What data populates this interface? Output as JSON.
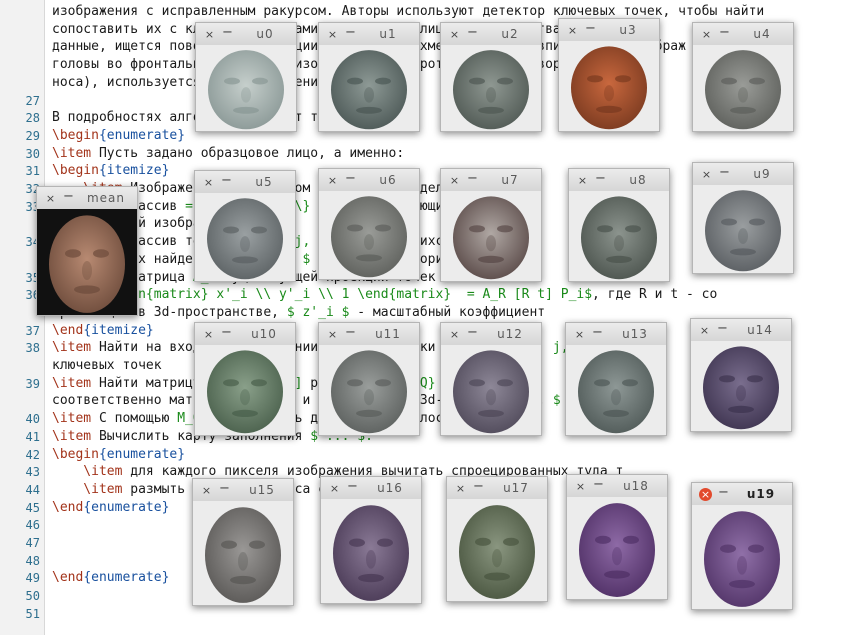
{
  "colors": {
    "command": "#a2331a",
    "brace": "#18509e",
    "math": "#1a8a1a",
    "line_number": "#2e6f8e",
    "close_active": "#e24a2d"
  },
  "editor": {
    "lines": [
      {
        "n": "",
        "parts": [
          {
            "t": "изображения с исправленным ракурсом. Авторы используют детектор ключевых точек, чтобы найти",
            "c": "txt"
          }
        ]
      },
      {
        "n": "",
        "parts": [
          {
            "t": "сопоставить их с ключевыми точками образцового лица, для качества е",
            "c": "txt"
          }
        ]
      },
      {
        "n": "",
        "parts": [
          {
            "t": "данные, ищется поворот 3d-проекции, поворот трёхмерной модели вписывается изображ",
            "c": "txt"
          }
        ]
      },
      {
        "n": "",
        "parts": [
          {
            "t": "головы во фронтальной. Для ... изображения повороты носа... поворо",
            "c": "txt"
          }
        ]
      },
      {
        "n": "",
        "parts": [
          {
            "t": "носа), используется ... изображение",
            "c": "txt"
          }
        ]
      },
      {
        "n": "27",
        "parts": []
      },
      {
        "n": "28",
        "parts": [
          {
            "t": "В подробностях алгоритм выглядит так",
            "c": "txt"
          }
        ]
      },
      {
        "n": "29",
        "parts": [
          {
            "t": "\\begin",
            "c": "kw"
          },
          {
            "t": "{enumerate}",
            "c": "br"
          }
        ]
      },
      {
        "n": "30",
        "parts": [
          {
            "t": "\\item",
            "c": "kw"
          },
          {
            "t": " Пусть задано образцовое лицо, а именно:",
            "c": "txt"
          }
        ]
      },
      {
        "n": "31",
        "parts": [
          {
            "t": "\\begin",
            "c": "kw"
          },
          {
            "t": "{itemize}",
            "c": "br"
          }
        ]
      },
      {
        "n": "32",
        "parts": [
          {
            "t": "    \\item",
            "c": "kw"
          },
          {
            "t": " Изображение ",
            "c": "txt"
          },
          {
            "t": "$,",
            "c": "gr"
          },
          {
            "t": " при этом трёхмерной моделей лица",
            "c": "txt"
          }
        ]
      },
      {
        "n": "33",
        "parts": [
          {
            "t": "    \\item",
            "c": "kw"
          },
          {
            "t": " Массив ",
            "c": "txt"
          },
          {
            "t": "= \\{(x_i, y_i)\\}",
            "c": "gr"
          },
          {
            "t": " модели ... рующихся",
            "c": "txt"
          }
        ]
      },
      {
        "n": "",
        "parts": [
          {
            "t": "    пикселей изображения",
            "c": "txt"
          }
        ]
      },
      {
        "n": "34",
        "parts": [
          {
            "t": "    \\item",
            "c": "kw"
          },
          {
            "t": " Массив точек ",
            "c": "txt"
          },
          {
            "t": "K_j ... j, j=1",
            "c": "gr"
          },
          {
            "t": " ... дирущихся",
            "c": "txt"
          }
        ]
      },
      {
        "n": "",
        "parts": [
          {
            "t": "    ключевых найденных образцов ",
            "c": "txt"
          },
          {
            "t": "$",
            "c": "gr"
          },
          {
            "t": " с помощью алгоритма ключе",
            "c": "txt"
          }
        ]
      },
      {
        "n": "35",
        "parts": [
          {
            "t": "    \\item",
            "c": "kw"
          },
          {
            "t": " Матрица ",
            "c": "txt"
          },
          {
            "t": "A_R",
            "c": "gr"
          },
          {
            "t": " существующей проекции точек н",
            "c": "txt"
          }
        ]
      },
      {
        "n": "36",
        "parts": [
          {
            "t": "    ",
            "c": "txt"
          },
          {
            "t": "i \\begin{matrix} x'_i \\\\ y'_i \\\\ 1 \\end{matrix}  = A_R [R t] P_i$",
            "c": "gr"
          },
          {
            "t": ", где R и t - со",
            "c": "txt"
          }
        ]
      },
      {
        "n": "",
        "parts": [
          {
            "t": "трансляции в 3d-пространстве, ",
            "c": "txt"
          },
          {
            "t": "$ z'_i $",
            "c": "gr"
          },
          {
            "t": " - масштабный коэффициент",
            "c": "txt"
          }
        ]
      },
      {
        "n": "37",
        "parts": [
          {
            "t": "\\end",
            "c": "kw"
          },
          {
            "t": "{itemize}",
            "c": "br"
          }
        ]
      },
      {
        "n": "38",
        "parts": [
          {
            "t": "\\item",
            "c": "kw"
          },
          {
            "t": " Найти на входном изображении ключевые точки ",
            "c": "txt"
          },
          {
            "t": "$ ... j = ... j, 1)^T",
            "c": "gr"
          }
        ]
      },
      {
        "n": "",
        "parts": [
          {
            "t": "ключевых точек",
            "c": "txt"
          }
        ]
      },
      {
        "n": "39",
        "parts": [
          {
            "t": "\\item",
            "c": "kw"
          },
          {
            "t": " Найти матрицу ",
            "c": "txt"
          },
          {
            "t": "$ [R_Q ... ]",
            "c": "gr"
          },
          {
            "t": " ракурса ",
            "c": "txt"
          },
          {
            "t": "= ... Q} { M_Q",
            "c": "gr"
          }
        ]
      },
      {
        "n": "",
        "parts": [
          {
            "t": "соответственно матрица поворота и трансляции в 3d-пространстве, ",
            "c": "txt"
          },
          {
            "t": "$",
            "c": "gr"
          },
          {
            "t": " известный",
            "c": "txt"
          }
        ]
      },
      {
        "n": "40",
        "parts": [
          {
            "t": "\\item",
            "c": "kw"
          },
          {
            "t": " С помощью ",
            "c": "txt"
          },
          {
            "t": "M_Q $",
            "c": "gr"
          },
          {
            "t": " рассчитать для точек ... лос... ив набо",
            "c": "txt"
          }
        ]
      },
      {
        "n": "41",
        "parts": [
          {
            "t": "\\item",
            "c": "kw"
          },
          {
            "t": " Вычислить карту заполнения ",
            "c": "txt"
          },
          {
            "t": "$ ... $.",
            "c": "gr"
          }
        ]
      },
      {
        "n": "42",
        "parts": [
          {
            "t": "\\begin",
            "c": "kw"
          },
          {
            "t": "{enumerate}",
            "c": "br"
          }
        ]
      },
      {
        "n": "43",
        "parts": [
          {
            "t": "    \\item",
            "c": "kw"
          },
          {
            "t": " для каждого пикселя изображения вычитать спроецированных туда т",
            "c": "txt"
          }
        ]
      },
      {
        "n": "44",
        "parts": [
          {
            "t": "    \\item",
            "c": "kw"
          },
          {
            "t": " размыть фильтром Гаусса сглаживанием",
            "c": "txt"
          }
        ]
      },
      {
        "n": "45",
        "parts": [
          {
            "t": "\\end",
            "c": "kw"
          },
          {
            "t": "{enumerate}",
            "c": "br"
          }
        ]
      },
      {
        "n": "46",
        "parts": []
      },
      {
        "n": "47",
        "parts": []
      },
      {
        "n": "48",
        "parts": []
      },
      {
        "n": "49",
        "parts": [
          {
            "t": "\\end",
            "c": "kw"
          },
          {
            "t": "{enumerate}",
            "c": "br"
          }
        ]
      },
      {
        "n": "50",
        "parts": []
      },
      {
        "n": "51",
        "parts": []
      }
    ]
  },
  "windows": [
    {
      "id": "u0",
      "title": "u0",
      "face": "#c6cfcc",
      "shade": "#8a9896",
      "close_symbol": "×",
      "min_symbol": "−"
    },
    {
      "id": "u1",
      "title": "u1",
      "face": "#8e9a96",
      "shade": "#4c5856",
      "close_symbol": "×",
      "min_symbol": "−"
    },
    {
      "id": "u2",
      "title": "u2",
      "face": "#8f9892",
      "shade": "#505954",
      "close_symbol": "×",
      "min_symbol": "−"
    },
    {
      "id": "u3",
      "title": "u3",
      "face": "#c9683e",
      "shade": "#7a3a20",
      "close_symbol": "×",
      "min_symbol": "−"
    },
    {
      "id": "u4",
      "title": "u4",
      "face": "#9a9c98",
      "shade": "#5e605c",
      "close_symbol": "×",
      "min_symbol": "−"
    },
    {
      "id": "mean",
      "title": "mean",
      "face": "#b88a72",
      "shade": "#6e4c3c",
      "close_symbol": "×",
      "min_symbol": "−"
    },
    {
      "id": "u5",
      "title": "u5",
      "face": "#9aa0a2",
      "shade": "#5c6264",
      "close_symbol": "×",
      "min_symbol": "−"
    },
    {
      "id": "u6",
      "title": "u6",
      "face": "#9a9c98",
      "shade": "#5e605c",
      "close_symbol": "×",
      "min_symbol": "−"
    },
    {
      "id": "u7",
      "title": "u7",
      "face": "#b0a8a4",
      "shade": "#5a4a48",
      "close_symbol": "×",
      "min_symbol": "−"
    },
    {
      "id": "u8",
      "title": "u8",
      "face": "#8c948e",
      "shade": "#4c544e",
      "close_symbol": "×",
      "min_symbol": "−"
    },
    {
      "id": "u9",
      "title": "u9",
      "face": "#9a9ea0",
      "shade": "#5a5e62",
      "close_symbol": "×",
      "min_symbol": "−"
    },
    {
      "id": "u10",
      "title": "u10",
      "face": "#8aa08a",
      "shade": "#4a604c",
      "close_symbol": "×",
      "min_symbol": "−"
    },
    {
      "id": "u11",
      "title": "u11",
      "face": "#9a9e9c",
      "shade": "#5c605e",
      "close_symbol": "×",
      "min_symbol": "−"
    },
    {
      "id": "u12",
      "title": "u12",
      "face": "#8e8898",
      "shade": "#504a5a",
      "close_symbol": "×",
      "min_symbol": "−"
    },
    {
      "id": "u13",
      "title": "u13",
      "face": "#8e9896",
      "shade": "#505a58",
      "close_symbol": "×",
      "min_symbol": "−"
    },
    {
      "id": "u14",
      "title": "u14",
      "face": "#7a6e8e",
      "shade": "#3e3450",
      "close_symbol": "×",
      "min_symbol": "−"
    },
    {
      "id": "u15",
      "title": "u15",
      "face": "#9a9896",
      "shade": "#5a5856",
      "close_symbol": "×",
      "min_symbol": "−"
    },
    {
      "id": "u16",
      "title": "u16",
      "face": "#8a7a96",
      "shade": "#4a3a56",
      "close_symbol": "×",
      "min_symbol": "−"
    },
    {
      "id": "u17",
      "title": "u17",
      "face": "#8a9680",
      "shade": "#4a5640",
      "close_symbol": "×",
      "min_symbol": "−"
    },
    {
      "id": "u18",
      "title": "u18",
      "face": "#8e6aa6",
      "shade": "#503066",
      "close_symbol": "×",
      "min_symbol": "−"
    },
    {
      "id": "u19",
      "title": "u19",
      "face": "#9070a8",
      "shade": "#523468",
      "close_symbol": "×",
      "min_symbol": "−"
    }
  ]
}
